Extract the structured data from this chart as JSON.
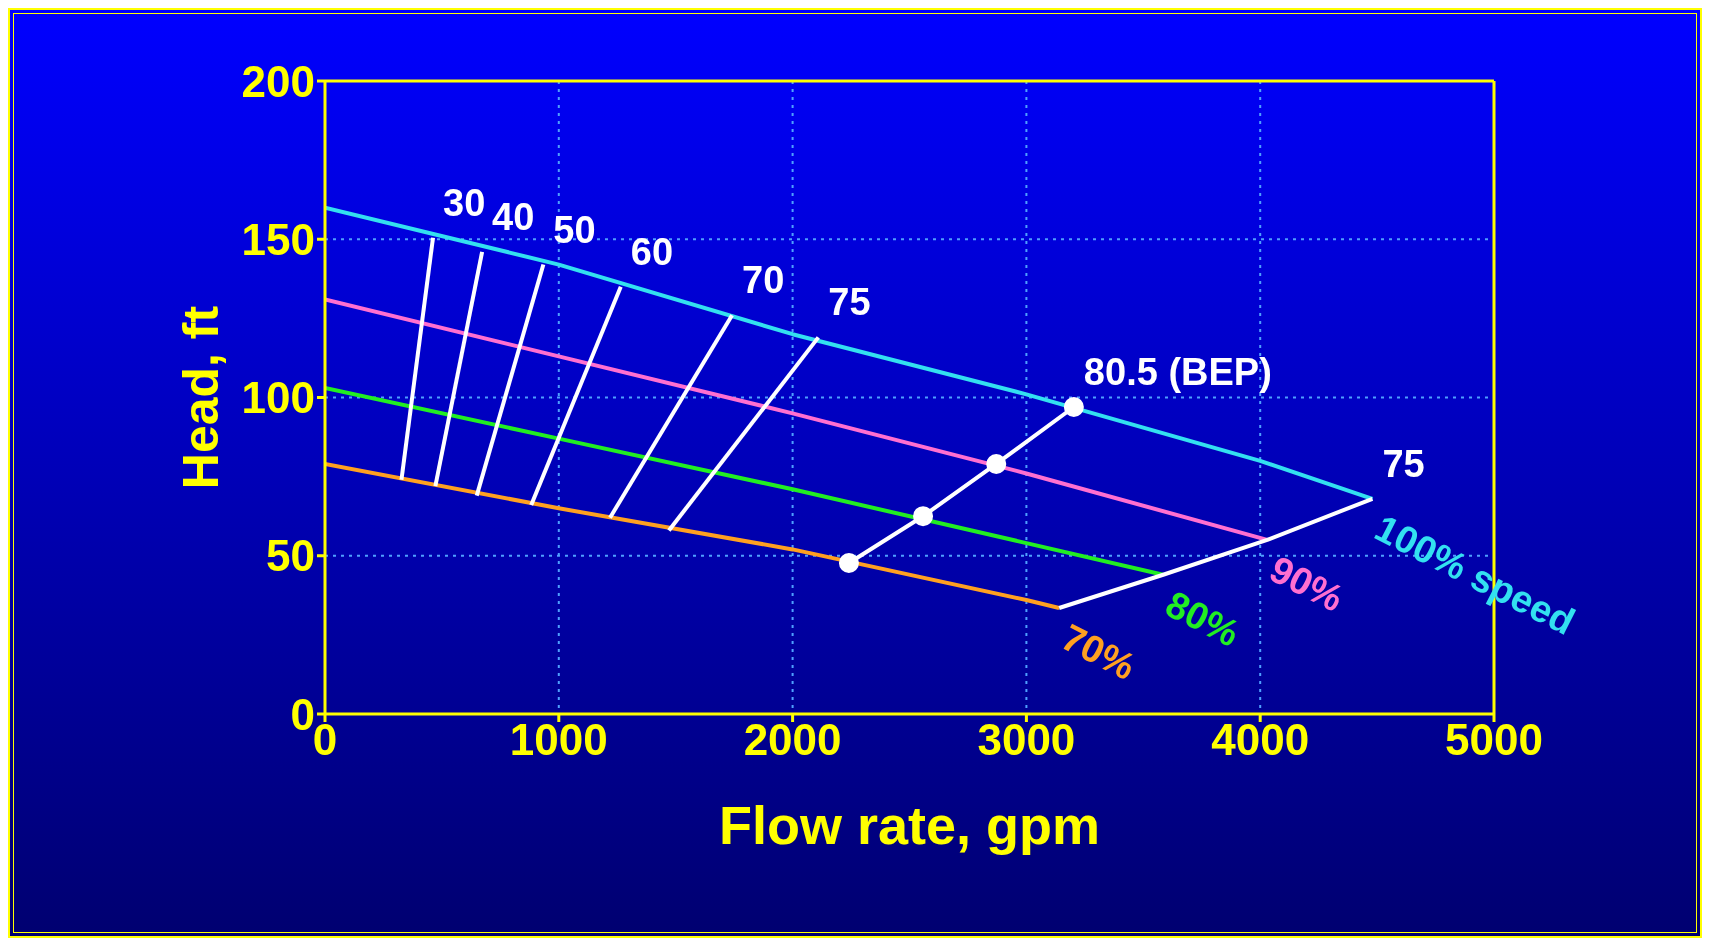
{
  "chart_data": {
    "type": "line",
    "xlabel": "Flow rate, gpm",
    "ylabel": "Head, ft",
    "xlim": [
      0,
      5000
    ],
    "xticks": [
      0,
      1000,
      2000,
      3000,
      4000,
      5000
    ],
    "ylim": [
      0,
      200
    ],
    "yticks": [
      0,
      50,
      100,
      150,
      200
    ],
    "grid": true,
    "legend": false,
    "series": [
      {
        "name": "100% speed",
        "color": "#33e0f0",
        "x": [
          0,
          1000,
          2000,
          3000,
          4000,
          4480
        ],
        "values": [
          160,
          142,
          120,
          101,
          80,
          68
        ]
      },
      {
        "name": "90%",
        "color": "#ff6fd0",
        "x": [
          0,
          1000,
          2000,
          3000,
          4030
        ],
        "values": [
          131,
          113,
          95,
          76,
          55
        ]
      },
      {
        "name": "80%",
        "color": "#22ee22",
        "x": [
          0,
          1000,
          2000,
          3000,
          3585
        ],
        "values": [
          103,
          87,
          71,
          54,
          44
        ]
      },
      {
        "name": "70%",
        "color": "#ffa020",
        "x": [
          0,
          1000,
          2000,
          3000,
          3140
        ],
        "values": [
          79,
          65,
          52,
          36,
          33.5
        ]
      },
      {
        "name": "30",
        "color": "#ffffff",
        "x": [
          327,
          462
        ],
        "values": [
          74,
          150.5
        ]
      },
      {
        "name": "40",
        "color": "#ffffff",
        "x": [
          472,
          672
        ],
        "values": [
          72,
          146
        ]
      },
      {
        "name": "50",
        "color": "#ffffff",
        "x": [
          649,
          934
        ],
        "values": [
          69,
          142
        ]
      },
      {
        "name": "60",
        "color": "#ffffff",
        "x": [
          882,
          1265
        ],
        "values": [
          66,
          135
        ]
      },
      {
        "name": "70",
        "color": "#ffffff",
        "x": [
          1219,
          1741
        ],
        "values": [
          62,
          126
        ]
      },
      {
        "name": "75",
        "color": "#ffffff",
        "x": [
          1471,
          2110
        ],
        "values": [
          58,
          119
        ]
      },
      {
        "name": "80.5 (BEP)",
        "color": "#ffffff",
        "marker": "circle",
        "x": [
          2241,
          2558,
          2871,
          3203
        ],
        "values": [
          47.7,
          62.5,
          79,
          97
        ]
      },
      {
        "name": "75",
        "color": "#ffffff",
        "x": [
          3140,
          3585,
          4030,
          4480
        ],
        "values": [
          33.5,
          44,
          55,
          68
        ]
      }
    ]
  }
}
